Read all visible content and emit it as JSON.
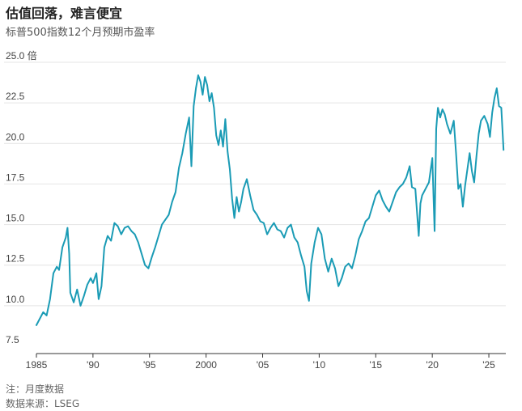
{
  "title": "估值回落，难言便宜",
  "subtitle": "标普500指数12个月预期市盈率",
  "footnote": "注：月度数据",
  "source": "数据来源：LSEG",
  "colors": {
    "line": "#1a9bb5",
    "grid": "#e4e4e4",
    "axis": "#333333"
  },
  "chart_data": {
    "type": "line",
    "title": "估值回落，难言便宜",
    "subtitle": "标普500指数12个月预期市盈率",
    "xlabel": "",
    "ylabel": "",
    "ylim": [
      7.5,
      25.0
    ],
    "xlim": [
      1985,
      2026.5
    ],
    "y_ticks": [
      {
        "value": 25.0,
        "label": "25.0 倍"
      },
      {
        "value": 22.5,
        "label": "22.5"
      },
      {
        "value": 20.0,
        "label": "20.0"
      },
      {
        "value": 17.5,
        "label": "17.5"
      },
      {
        "value": 15.0,
        "label": "15.0"
      },
      {
        "value": 12.5,
        "label": "12.5"
      },
      {
        "value": 10.0,
        "label": "10.0"
      },
      {
        "value": 7.5,
        "label": "7.5"
      }
    ],
    "x_ticks": [
      {
        "value": 1985,
        "label": "1985"
      },
      {
        "value": 1990,
        "label": "'90"
      },
      {
        "value": 1995,
        "label": "'95"
      },
      {
        "value": 2000,
        "label": "2000"
      },
      {
        "value": 2005,
        "label": "'05"
      },
      {
        "value": 2010,
        "label": "'10"
      },
      {
        "value": 2015,
        "label": "'15"
      },
      {
        "value": 2020,
        "label": "'20"
      },
      {
        "value": 2025,
        "label": "'25"
      }
    ],
    "grid": true,
    "series": [
      {
        "name": "标普500指数12个月预期市盈率",
        "x": [
          1985.0,
          1985.3,
          1985.6,
          1985.9,
          1986.2,
          1986.5,
          1986.8,
          1987.0,
          1987.3,
          1987.6,
          1987.75,
          1987.9,
          1988.0,
          1988.3,
          1988.6,
          1988.9,
          1989.2,
          1989.5,
          1989.8,
          1990.0,
          1990.3,
          1990.5,
          1990.75,
          1991.0,
          1991.3,
          1991.6,
          1991.9,
          1992.2,
          1992.5,
          1992.8,
          1993.1,
          1993.4,
          1993.7,
          1994.0,
          1994.3,
          1994.6,
          1994.9,
          1995.2,
          1995.5,
          1995.8,
          1996.1,
          1996.4,
          1996.7,
          1997.0,
          1997.3,
          1997.6,
          1997.9,
          1998.2,
          1998.5,
          1998.7,
          1998.9,
          1999.1,
          1999.3,
          1999.5,
          1999.7,
          1999.9,
          2000.1,
          2000.3,
          2000.5,
          2000.7,
          2000.9,
          2001.1,
          2001.3,
          2001.5,
          2001.7,
          2001.9,
          2002.1,
          2002.3,
          2002.5,
          2002.7,
          2002.9,
          2003.1,
          2003.3,
          2003.6,
          2003.9,
          2004.2,
          2004.5,
          2004.8,
          2005.1,
          2005.4,
          2005.7,
          2006.0,
          2006.3,
          2006.6,
          2006.9,
          2007.2,
          2007.5,
          2007.8,
          2008.1,
          2008.4,
          2008.7,
          2008.9,
          2009.1,
          2009.3,
          2009.6,
          2009.9,
          2010.2,
          2010.5,
          2010.8,
          2011.1,
          2011.4,
          2011.7,
          2012.0,
          2012.3,
          2012.6,
          2012.9,
          2013.2,
          2013.5,
          2013.8,
          2014.1,
          2014.4,
          2014.7,
          2015.0,
          2015.3,
          2015.6,
          2015.9,
          2016.2,
          2016.5,
          2016.8,
          2017.1,
          2017.4,
          2017.7,
          2018.0,
          2018.2,
          2018.5,
          2018.8,
          2018.95,
          2019.1,
          2019.4,
          2019.7,
          2020.0,
          2020.2,
          2020.35,
          2020.5,
          2020.7,
          2020.9,
          2021.1,
          2021.3,
          2021.6,
          2021.9,
          2022.1,
          2022.3,
          2022.5,
          2022.7,
          2022.9,
          2023.1,
          2023.3,
          2023.5,
          2023.7,
          2023.9,
          2024.1,
          2024.3,
          2024.6,
          2024.9,
          2025.1,
          2025.3,
          2025.5,
          2025.7,
          2025.9,
          2026.1,
          2026.3
        ],
        "values": [
          8.8,
          9.2,
          9.6,
          9.4,
          10.4,
          12.0,
          12.4,
          12.2,
          13.6,
          14.2,
          14.8,
          13.2,
          10.8,
          10.2,
          11.0,
          10.0,
          10.6,
          11.3,
          11.7,
          11.4,
          12.0,
          10.4,
          11.2,
          13.6,
          14.3,
          14.0,
          15.1,
          14.9,
          14.4,
          14.8,
          14.9,
          14.6,
          14.4,
          13.9,
          13.2,
          12.5,
          12.3,
          13.0,
          13.6,
          14.3,
          15.0,
          15.3,
          15.6,
          16.4,
          17.0,
          18.5,
          19.4,
          20.6,
          21.6,
          18.6,
          22.3,
          23.4,
          24.2,
          23.8,
          23.0,
          24.1,
          23.6,
          22.6,
          23.1,
          22.2,
          20.5,
          19.9,
          20.8,
          19.8,
          21.5,
          19.5,
          18.4,
          16.6,
          15.4,
          16.7,
          15.8,
          16.4,
          17.2,
          17.8,
          16.8,
          15.9,
          15.6,
          15.2,
          15.1,
          14.4,
          14.8,
          15.1,
          14.7,
          14.6,
          14.2,
          14.8,
          15.0,
          14.2,
          13.9,
          13.1,
          12.4,
          10.9,
          10.3,
          12.6,
          13.9,
          14.8,
          14.4,
          12.9,
          12.1,
          12.9,
          12.3,
          11.2,
          11.7,
          12.4,
          12.6,
          12.3,
          13.1,
          14.1,
          14.6,
          15.2,
          15.4,
          16.1,
          16.8,
          17.1,
          16.5,
          16.1,
          15.8,
          16.4,
          17.0,
          17.3,
          17.5,
          17.9,
          18.6,
          17.3,
          17.2,
          14.3,
          16.3,
          16.8,
          17.2,
          17.6,
          19.1,
          14.6,
          20.9,
          22.2,
          21.6,
          22.1,
          21.8,
          21.2,
          20.6,
          21.4,
          19.4,
          17.2,
          17.5,
          16.1,
          17.4,
          18.4,
          19.4,
          18.3,
          17.6,
          19.2,
          20.6,
          21.4,
          21.7,
          21.2,
          20.4,
          21.9,
          22.8,
          23.4,
          22.3,
          22.2,
          19.6
        ]
      }
    ]
  }
}
